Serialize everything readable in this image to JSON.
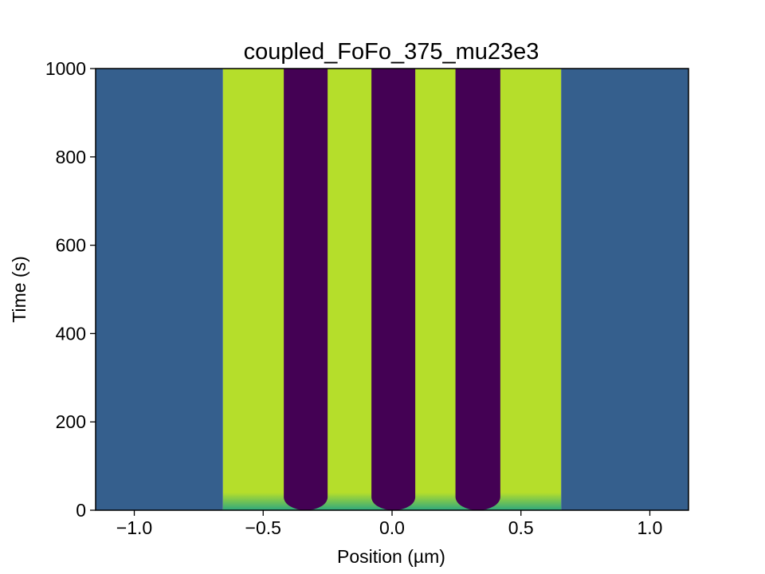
{
  "chart_data": {
    "type": "heatmap",
    "title": "coupled_FoFo_375_mu23e3",
    "xlabel": "Position (µm)",
    "ylabel": "Time (s)",
    "xlim": [
      -1.15,
      1.15
    ],
    "ylim": [
      0,
      1000
    ],
    "x_ticks": [
      -1.0,
      -0.5,
      0.0,
      0.5,
      1.0
    ],
    "x_tick_labels": [
      "−1.0",
      "−0.5",
      "0.0",
      "0.5",
      "1.0"
    ],
    "y_ticks": [
      0,
      200,
      400,
      600,
      800,
      1000
    ],
    "y_tick_labels": [
      "0",
      "200",
      "400",
      "600",
      "800",
      "1000"
    ],
    "colormap": "viridis",
    "colors": {
      "background_band": "#355f8d",
      "high_band": "#b5de2b",
      "low_band": "#440154",
      "transient": "#1fa187"
    },
    "regions": [
      {
        "x0": -1.15,
        "x1": -0.656,
        "level": "background"
      },
      {
        "x0": -0.656,
        "x1": 0.656,
        "level": "high"
      },
      {
        "x0": 0.656,
        "x1": 1.15,
        "level": "background"
      }
    ],
    "low_stripes": [
      {
        "x0": -0.42,
        "x1": -0.25,
        "t_start": 0
      },
      {
        "x0": -0.08,
        "x1": 0.09,
        "t_start": 0
      },
      {
        "x0": 0.246,
        "x1": 0.42,
        "t_start": 0
      }
    ],
    "grid": false
  }
}
